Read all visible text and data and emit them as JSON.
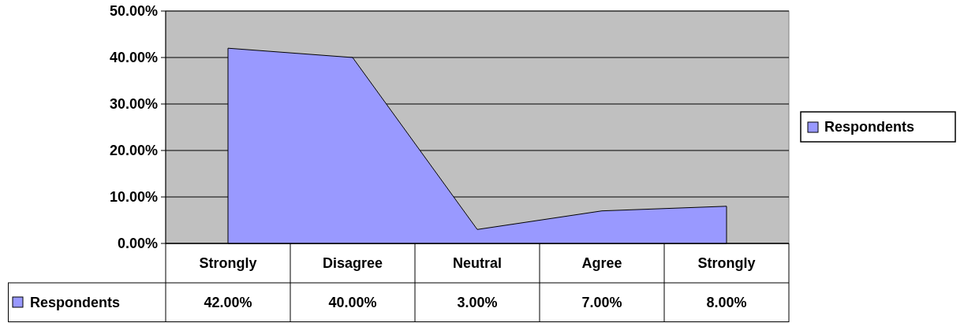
{
  "chart_data": {
    "type": "area",
    "categories": [
      "Strongly",
      "Disagree",
      "Neutral",
      "Agree",
      "Strongly"
    ],
    "series": [
      {
        "name": "Respondents",
        "color": "#9999ff",
        "values": [
          42,
          40,
          3,
          7,
          8
        ],
        "value_labels": [
          "42.00%",
          "40.00%",
          "3.00%",
          "7.00%",
          "8.00%"
        ]
      }
    ],
    "ylim": [
      0,
      50
    ],
    "yticks": [
      {
        "value": 0,
        "label": "0.00%"
      },
      {
        "value": 10,
        "label": "10.00%"
      },
      {
        "value": 20,
        "label": "20.00%"
      },
      {
        "value": 30,
        "label": "30.00%"
      },
      {
        "value": 40,
        "label": "40.00%"
      },
      {
        "value": 50,
        "label": "50.00%"
      }
    ],
    "grid": "y",
    "legend": "right"
  }
}
